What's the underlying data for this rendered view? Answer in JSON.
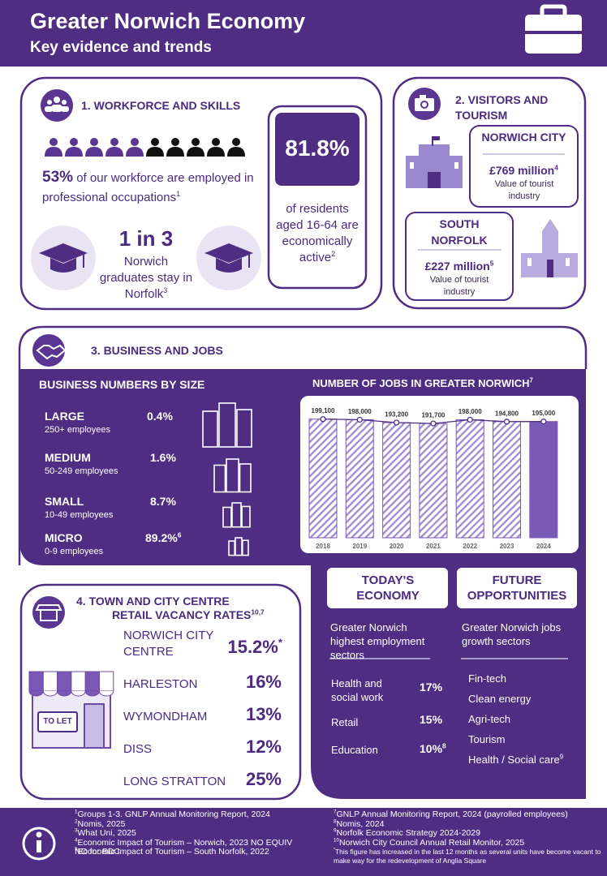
{
  "header": {
    "title": "Greater Norwich Economy",
    "subtitle": "Key evidence and trends"
  },
  "workforce": {
    "heading": "1. WORKFORCE AND SKILLS",
    "professional": {
      "value": "53%",
      "text": "of our workforce are employed in professional occupations",
      "note": "1"
    },
    "graduates": {
      "value": "1 in 3",
      "text": "Norwich graduates stay in Norfolk",
      "note": "3"
    },
    "active": {
      "value": "81.8%",
      "text": "of residents aged 16-64 are economically active",
      "note": "2"
    }
  },
  "tourism": {
    "heading": "2. VISITORS AND TOURISM",
    "places": [
      {
        "name": "NORWICH CITY",
        "value": "£769 million",
        "note": "4",
        "text": "Value of tourist industry"
      },
      {
        "name": "SOUTH NORFOLK",
        "value": "£227 million",
        "note": "5",
        "text": "Value of tourist industry"
      }
    ]
  },
  "business": {
    "heading": "3. BUSINESS AND JOBS",
    "sizes_title": "BUSINESS NUMBERS BY SIZE",
    "sizes": [
      {
        "name": "LARGE",
        "range": "250+ employees",
        "share": "0.4%"
      },
      {
        "name": "MEDIUM",
        "range": "50-249 employees",
        "share": "1.6%"
      },
      {
        "name": "SMALL",
        "range": "10-49 employees",
        "share": "8.7%"
      },
      {
        "name": "MICRO",
        "range": "0-9 employees",
        "share": "89.2%",
        "note": "6"
      }
    ]
  },
  "chart_data": {
    "type": "bar",
    "title": "NUMBER OF JOBS IN GREATER NORWICH",
    "title_note": "7",
    "categories": [
      "2018",
      "2019",
      "2020",
      "2021",
      "2022",
      "2023",
      "2024"
    ],
    "values": [
      199100,
      198000,
      193200,
      191700,
      198000,
      194800,
      195000
    ],
    "value_labels": [
      "199,100",
      "198,000",
      "193,200",
      "191,700",
      "198,000",
      "194,800",
      "195,000"
    ],
    "ylim": [
      0,
      200000
    ],
    "color": "#7b59b6",
    "bar_styles": [
      "hatched",
      "hatched",
      "hatched",
      "hatched",
      "hatched",
      "hatched",
      "solid"
    ]
  },
  "economy": {
    "today": {
      "heading": "TODAY'S ECONOMY",
      "intro": "Greater Norwich highest employment sectors",
      "sectors": [
        {
          "name": "Health and social work",
          "share": "17%"
        },
        {
          "name": "Retail",
          "share": "15%"
        },
        {
          "name": "Education",
          "share": "10%",
          "note": "8"
        }
      ]
    },
    "future": {
      "heading": "FUTURE OPPORTUNITIES",
      "intro": "Greater Norwich jobs growth sectors",
      "sectors": [
        "Fin-tech",
        "Clean energy",
        "Agri-tech",
        "Tourism",
        "Health / Social care"
      ],
      "last_note": "9"
    }
  },
  "retail": {
    "heading": "4. TOWN AND CITY CENTRE",
    "heading2": "RETAIL VACANCY RATES",
    "note": "10,7",
    "sign": "TO LET",
    "centres": [
      {
        "name": "NORWICH CITY CENTRE",
        "rate": "15.2%",
        "note": "*"
      },
      {
        "name": "HARLESTON",
        "rate": "16%"
      },
      {
        "name": "WYMONDHAM",
        "rate": "13%"
      },
      {
        "name": "DISS",
        "rate": "12%"
      },
      {
        "name": "LONG STRATTON",
        "rate": "25%"
      }
    ]
  },
  "footer": {
    "sources": [
      {
        "mark": "1",
        "text": "Groups 1-3. GNLP Annual Monitoring Report, 2024"
      },
      {
        "mark": "2",
        "text": "Nomis, 2025"
      },
      {
        "mark": "3",
        "text": "What Uni, 2025"
      },
      {
        "mark": "4",
        "text": "Economic Impact of Tourism – Norwich, 2023 NO EQUIV NO for BDC"
      },
      {
        "mark": "5",
        "text": "Economic Impact of Tourism – South Norfolk, 2022"
      },
      {
        "mark": "7",
        "text": "GNLP Annual Monitoring Report, 2024 (payrolled employees)"
      },
      {
        "mark": "8",
        "text": "Nomis, 2024"
      },
      {
        "mark": "9",
        "text": "Norfolk Economic Strategy 2024-2029"
      },
      {
        "mark": "10",
        "text": "Norwich City Council Annual Retail Monitor, 2025"
      },
      {
        "mark": "*",
        "text": "This figure has increased in the last 12 months as several units have become vacant to make way for the redevelopment of Anglia Square"
      }
    ]
  }
}
